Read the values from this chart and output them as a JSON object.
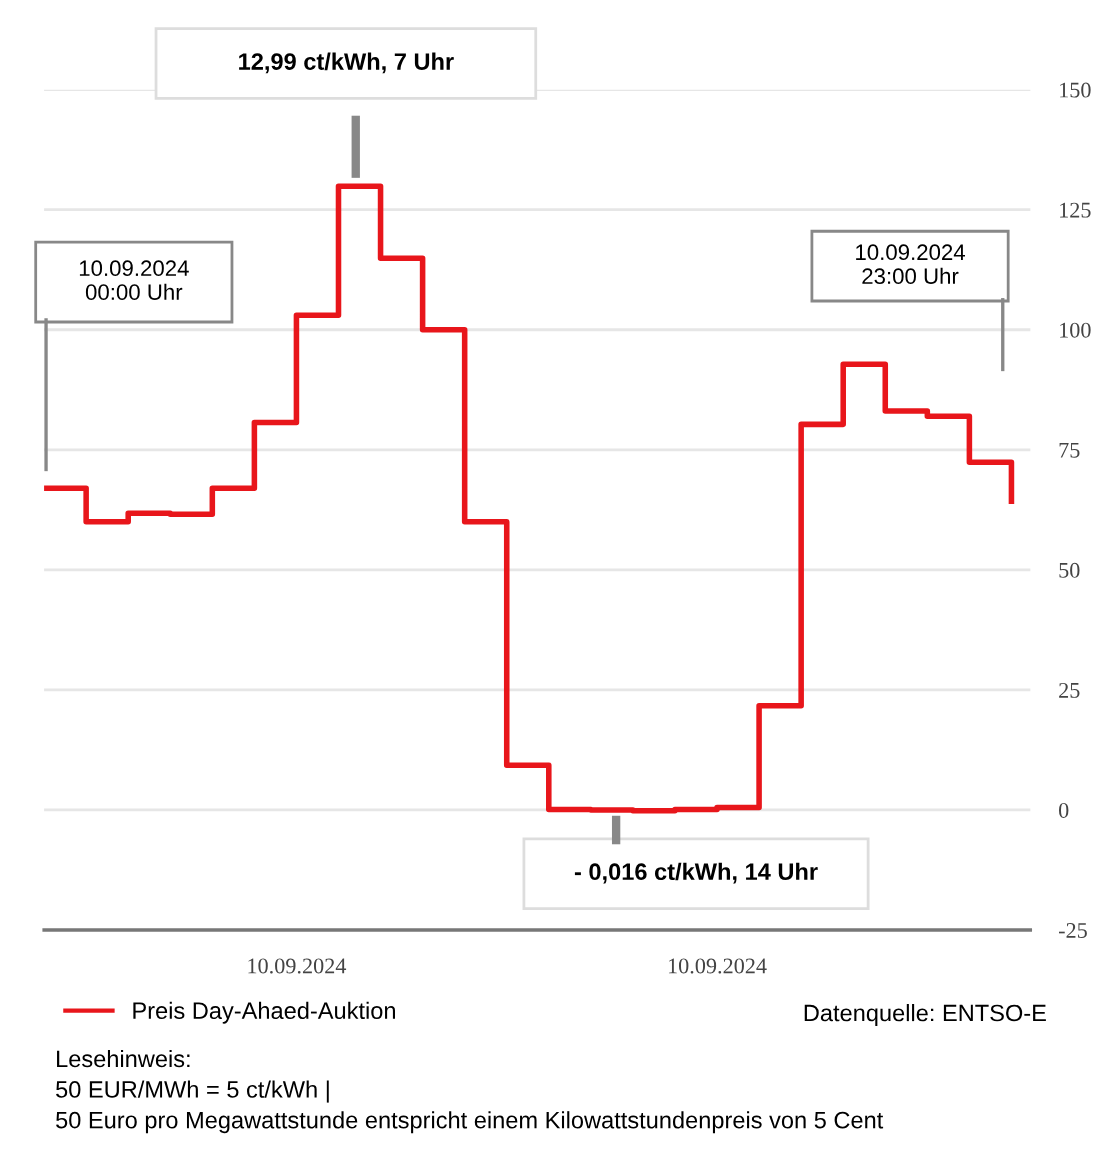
{
  "chart_data": {
    "type": "step",
    "categories": [
      null,
      null,
      null,
      null,
      null,
      null,
      "10.09.2024",
      null,
      null,
      null,
      null,
      null,
      null,
      null,
      null,
      null,
      "10.09.2024",
      null,
      null,
      null,
      null,
      null,
      null,
      null
    ],
    "series": [
      {
        "name": "Preis Day-Ahaed-Auktion",
        "color": "#e8161b",
        "values": [
          67,
          60,
          61.8,
          61.6,
          67,
          80.7,
          103,
          129.9,
          114.9,
          100,
          60,
          9.3,
          0.1,
          0,
          -0.16,
          0.1,
          0.5,
          21.7,
          80.3,
          92.8,
          83.1,
          82,
          72.4,
          64.3
        ]
      }
    ],
    "ylim": [
      -25,
      150
    ],
    "yticks": [
      -25,
      0,
      25,
      50,
      75,
      100,
      125,
      150
    ],
    "grid": "y",
    "legend": "bottom left",
    "line_style": "solid",
    "annotations": [
      "12,99 ct/kWh, 7 Uhr",
      "- 0,016 ct/kWh, 14 Uhr",
      "10.09.2024\n00:00 Uhr",
      "10.09.2024\n23:00 Uhr",
      "Datenquelle: ENTSO-E",
      "Lesehinweis:\n50 EUR/MWh = 5 ct/kWh |\n50 Euro pro Megawattstunde entspricht einem Kilowattstundenpreis von 5 Cent"
    ]
  }
}
